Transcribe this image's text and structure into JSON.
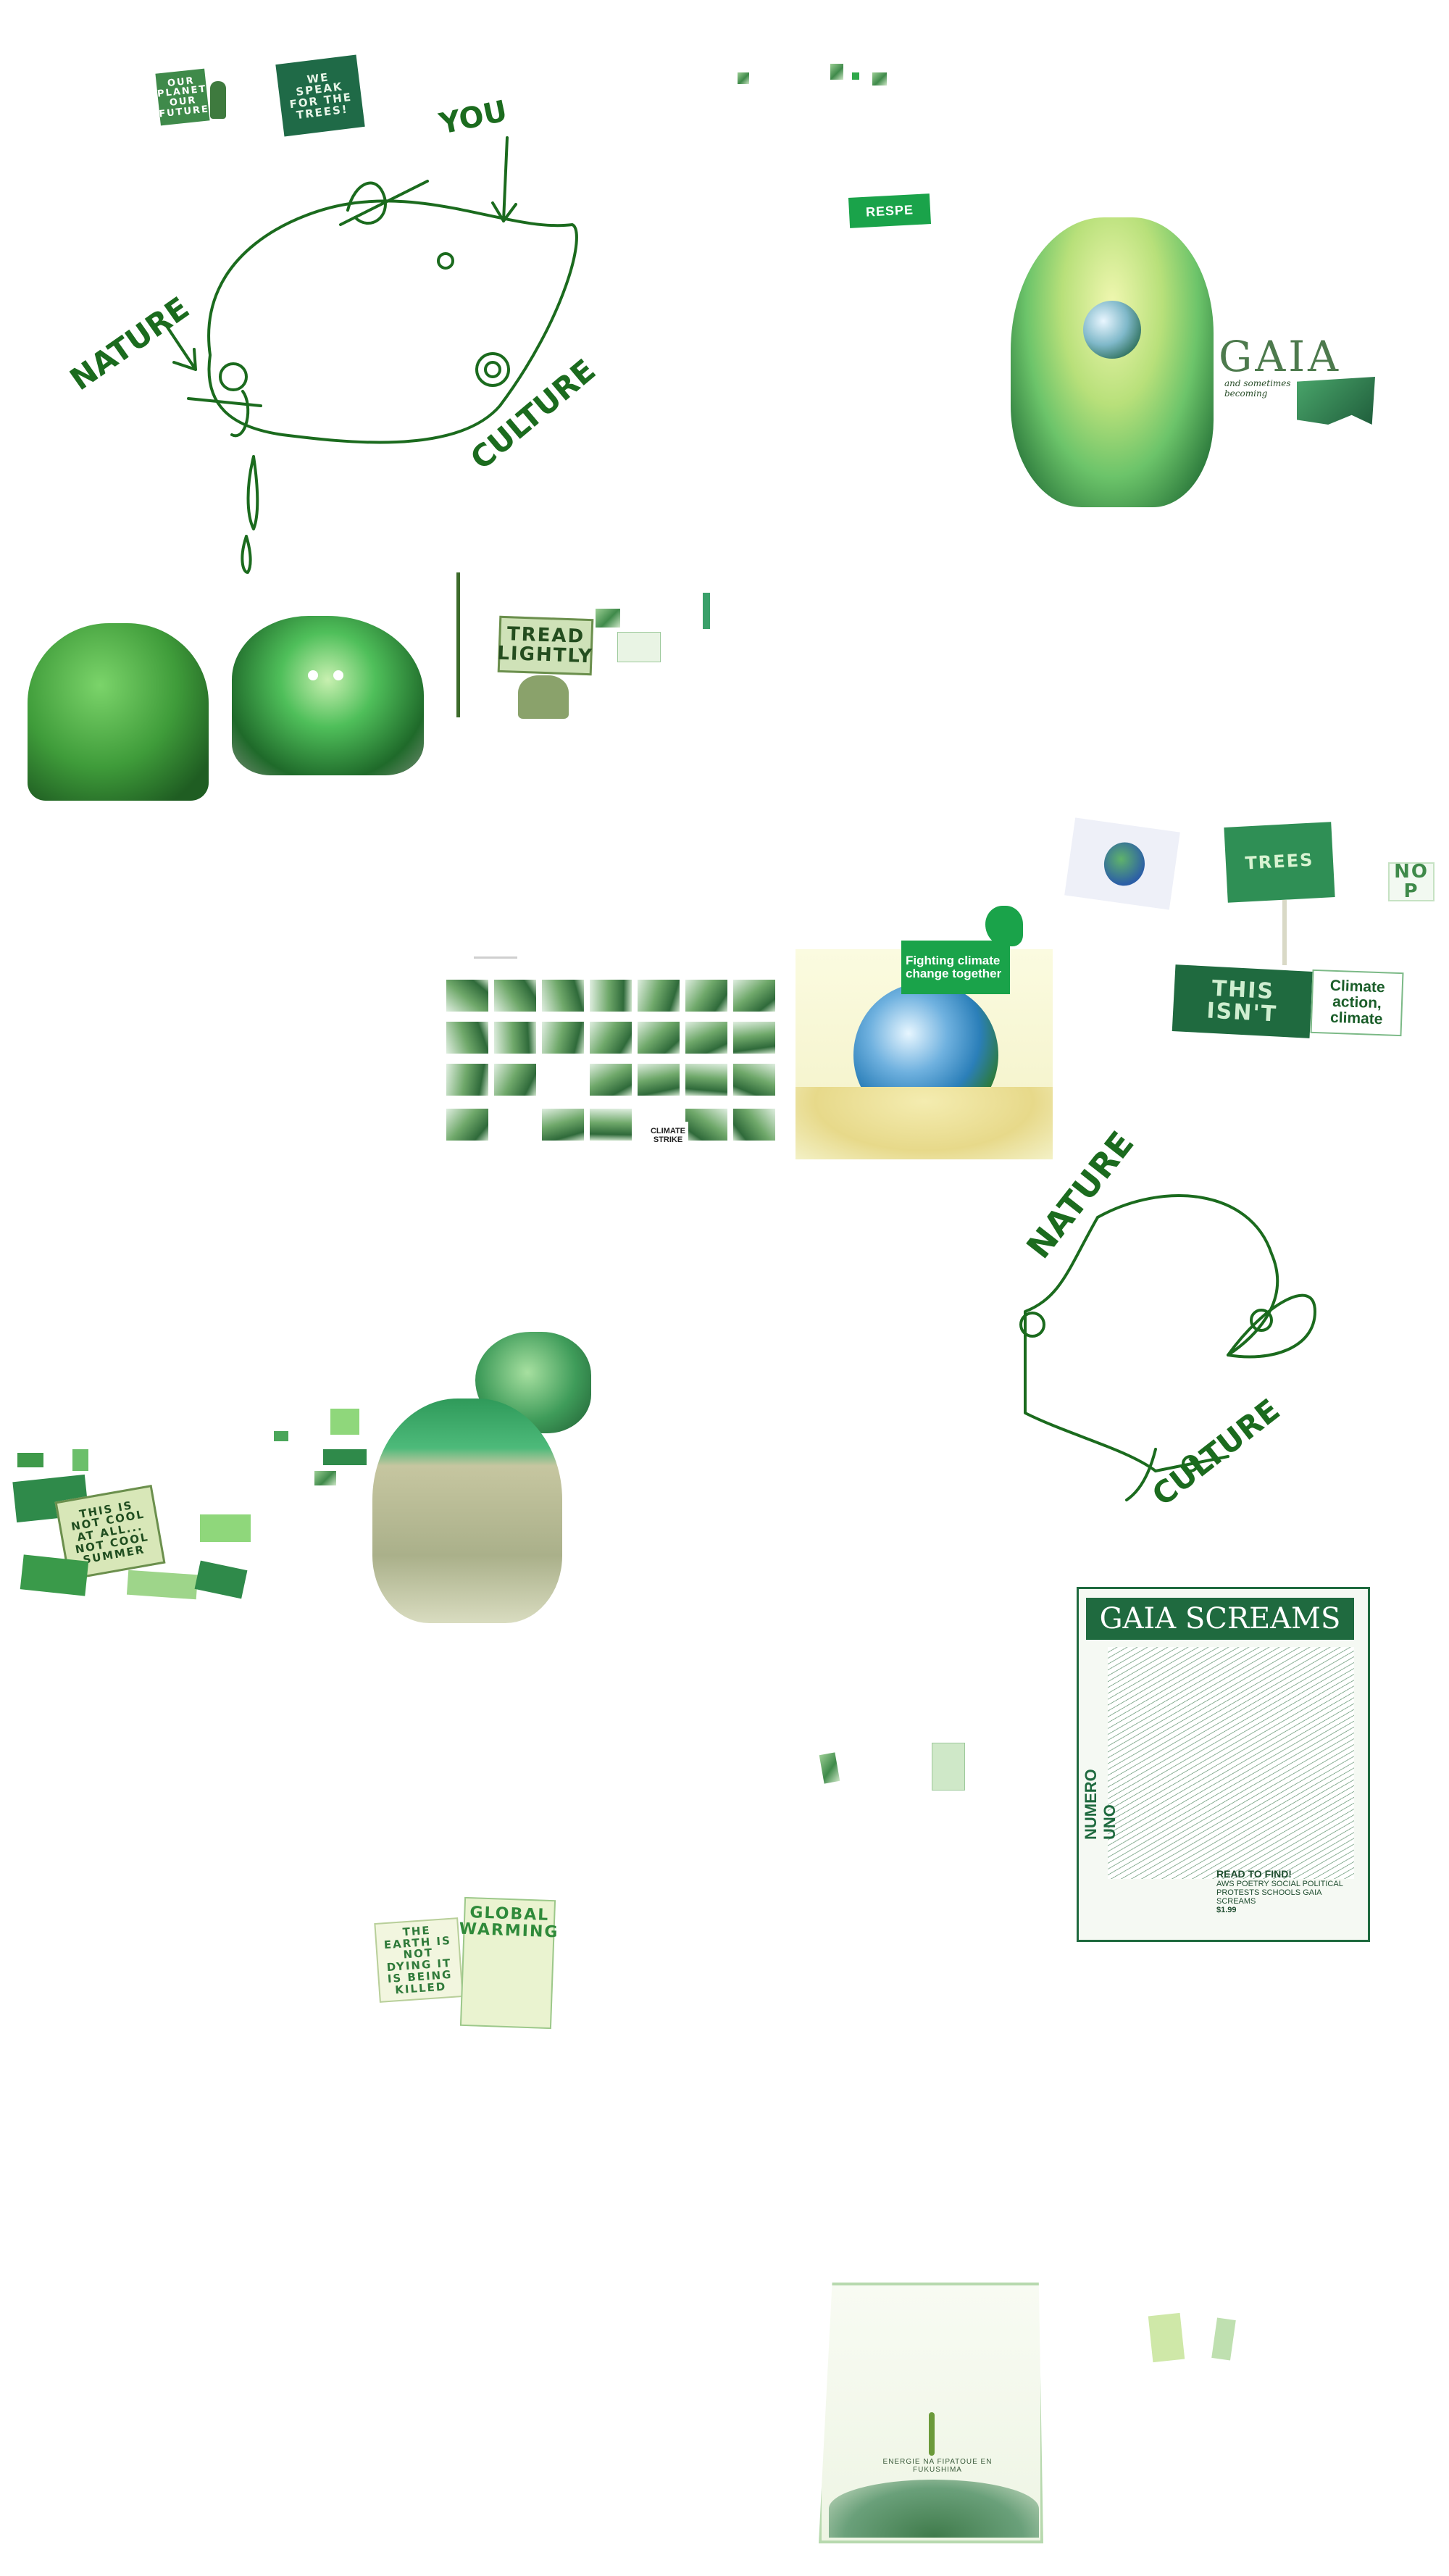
{
  "colors": {
    "accent": "#1b6b1e",
    "bright": "#2fa84a",
    "pale": "#cfe8c8",
    "bg": "#ffffff"
  },
  "sketch_top": {
    "nature": "NATURE",
    "you": "YOU",
    "culture": "CULTURE"
  },
  "signs": {
    "planet": "OUR PLANET OUR FUTURE",
    "trees": "WE SPEAK FOR THE TREES!",
    "respect": "RESPE",
    "tread": "TREAD LIGHTLY",
    "fighting": "Fighting climate change together",
    "climate_strike": "CLIMATE STRIKE",
    "trees_green": "TREES",
    "this_isnt": "THIS ISN'T",
    "climate_action": "Climate action, climate",
    "no": "NO P",
    "not_cool": "THIS IS NOT COOL AT ALL... NOT COOL SUMMER",
    "earth_dying": "THE EARTH IS NOT DYING IT IS BEING KILLED",
    "global_warming": "GLOBAL WARMING"
  },
  "gaia": {
    "title": "GAIA",
    "caption": "and sometimes becoming"
  },
  "sketch_bottom": {
    "nature": "NATURE",
    "culture": "CULTURE"
  },
  "zine": {
    "title": "GAIA SCREAMS",
    "side": "NUMERO UNO",
    "note": "READ TO FIND!",
    "note_body": "AWS POETRY SOCIAL POLITICAL PROTESTS SCHOOLS GAIA SCREAMS",
    "price": "$1.99"
  },
  "poster": {
    "caption": "ENERGIE NA FIPATOUE EN FUKUSHIMA"
  }
}
